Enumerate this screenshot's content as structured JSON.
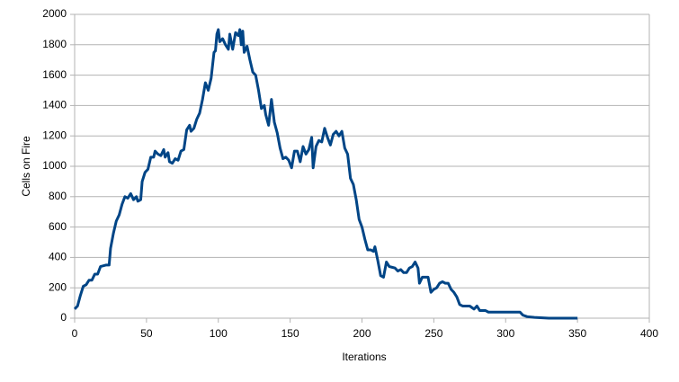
{
  "chart_data": {
    "type": "line",
    "x_label": "Iterations",
    "y_label": "Cells on Fire",
    "xlim": [
      0,
      400
    ],
    "xticks": [
      0,
      50,
      100,
      150,
      200,
      250,
      300,
      350,
      400
    ],
    "ylim": [
      0,
      2000
    ],
    "yticks": [
      0,
      200,
      400,
      600,
      800,
      1000,
      1200,
      1400,
      1600,
      1800,
      2000
    ],
    "grid": true,
    "x": [
      0,
      2,
      4,
      6,
      8,
      10,
      12,
      14,
      16,
      18,
      20,
      22,
      24,
      25,
      27,
      29,
      31,
      33,
      35,
      37,
      39,
      41,
      43,
      44,
      46,
      47,
      49,
      51,
      53,
      55,
      56,
      58,
      60,
      62,
      63,
      65,
      66,
      68,
      70,
      72,
      74,
      76,
      78,
      80,
      81,
      83,
      85,
      87,
      89,
      91,
      93,
      95,
      97,
      98,
      99,
      100,
      101,
      103,
      105,
      107,
      108,
      110,
      112,
      114,
      115,
      116,
      117,
      118,
      120,
      122,
      124,
      126,
      128,
      130,
      132,
      133,
      135,
      137,
      139,
      141,
      143,
      145,
      147,
      149,
      151,
      153,
      155,
      157,
      159,
      161,
      163,
      165,
      166,
      168,
      170,
      172,
      174,
      176,
      178,
      180,
      182,
      184,
      186,
      188,
      190,
      192,
      194,
      196,
      198,
      200,
      202,
      204,
      206,
      208,
      209,
      211,
      213,
      215,
      217,
      219,
      221,
      223,
      225,
      227,
      229,
      231,
      233,
      235,
      237,
      239,
      240,
      242,
      246,
      248,
      250,
      252,
      254,
      256,
      258,
      260,
      262,
      264,
      266,
      268,
      270,
      275,
      278,
      280,
      282,
      286,
      288,
      300,
      310,
      312,
      315,
      320,
      330,
      340,
      350
    ],
    "series": [
      {
        "name": "Cells on Fire",
        "color": "#004586",
        "values": [
          60,
          80,
          150,
          210,
          220,
          250,
          250,
          290,
          290,
          340,
          345,
          350,
          350,
          460,
          560,
          640,
          680,
          750,
          800,
          790,
          820,
          780,
          800,
          770,
          780,
          900,
          960,
          980,
          1060,
          1060,
          1100,
          1080,
          1070,
          1110,
          1060,
          1090,
          1030,
          1020,
          1050,
          1040,
          1100,
          1110,
          1240,
          1270,
          1230,
          1250,
          1310,
          1350,
          1440,
          1550,
          1500,
          1580,
          1750,
          1760,
          1870,
          1900,
          1820,
          1840,
          1800,
          1770,
          1870,
          1770,
          1880,
          1860,
          1900,
          1800,
          1890,
          1750,
          1790,
          1700,
          1620,
          1600,
          1500,
          1380,
          1400,
          1340,
          1270,
          1440,
          1290,
          1220,
          1120,
          1050,
          1060,
          1040,
          990,
          1100,
          1100,
          1030,
          1130,
          1080,
          1110,
          1190,
          990,
          1130,
          1170,
          1160,
          1250,
          1190,
          1140,
          1210,
          1230,
          1200,
          1230,
          1120,
          1080,
          920,
          880,
          780,
          650,
          600,
          520,
          450,
          450,
          440,
          470,
          380,
          280,
          270,
          370,
          340,
          335,
          330,
          310,
          320,
          300,
          300,
          330,
          340,
          370,
          330,
          230,
          270,
          270,
          170,
          190,
          200,
          230,
          240,
          230,
          230,
          190,
          170,
          140,
          90,
          80,
          80,
          60,
          80,
          50,
          50,
          40,
          40,
          40,
          20,
          10,
          5,
          0,
          0,
          0
        ]
      }
    ]
  }
}
